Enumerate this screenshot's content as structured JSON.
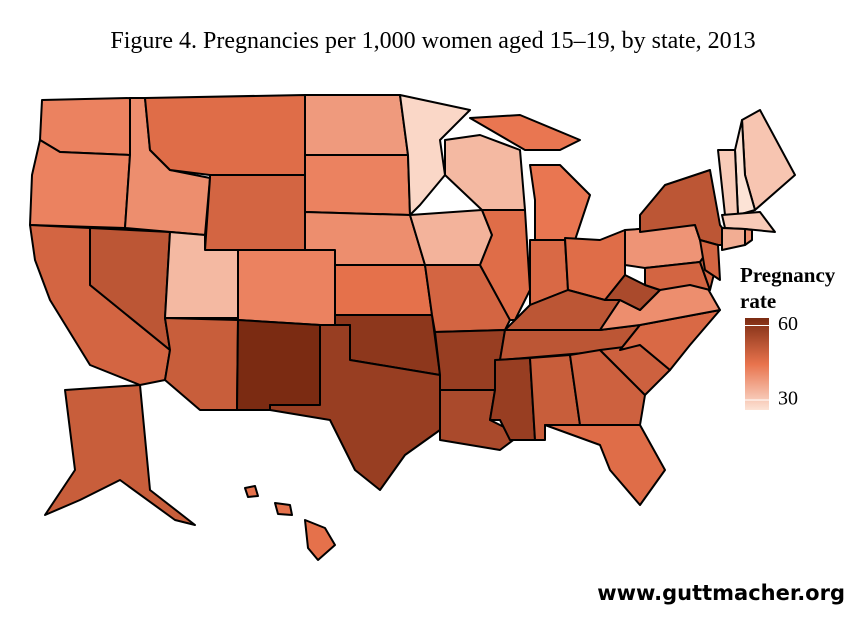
{
  "chart_data": {
    "type": "choropleth",
    "title": "Figure 4. Pregnancies per 1,000 women aged 15–19, by state, 2013",
    "values": [
      42,
      42,
      48,
      52,
      40,
      46,
      48,
      33,
      42,
      50,
      63,
      38,
      42,
      40,
      45,
      60,
      58,
      28,
      34,
      48,
      58,
      55,
      33,
      46,
      44,
      47,
      46,
      52,
      52,
      58,
      50,
      49,
      46,
      49,
      47,
      40,
      55,
      39,
      52,
      48,
      48,
      48,
      31,
      26,
      30,
      30,
      35,
      40,
      50,
      45
    ],
    "clim": [
      26,
      63
    ],
    "cticks": [
      30,
      60
    ],
    "colors": [
      "#fce3d6",
      "#e8734d",
      "#7b2b12"
    ],
    "legend_title": "Pregnancy rate"
  },
  "source_url": "www.guttmacher.org"
}
